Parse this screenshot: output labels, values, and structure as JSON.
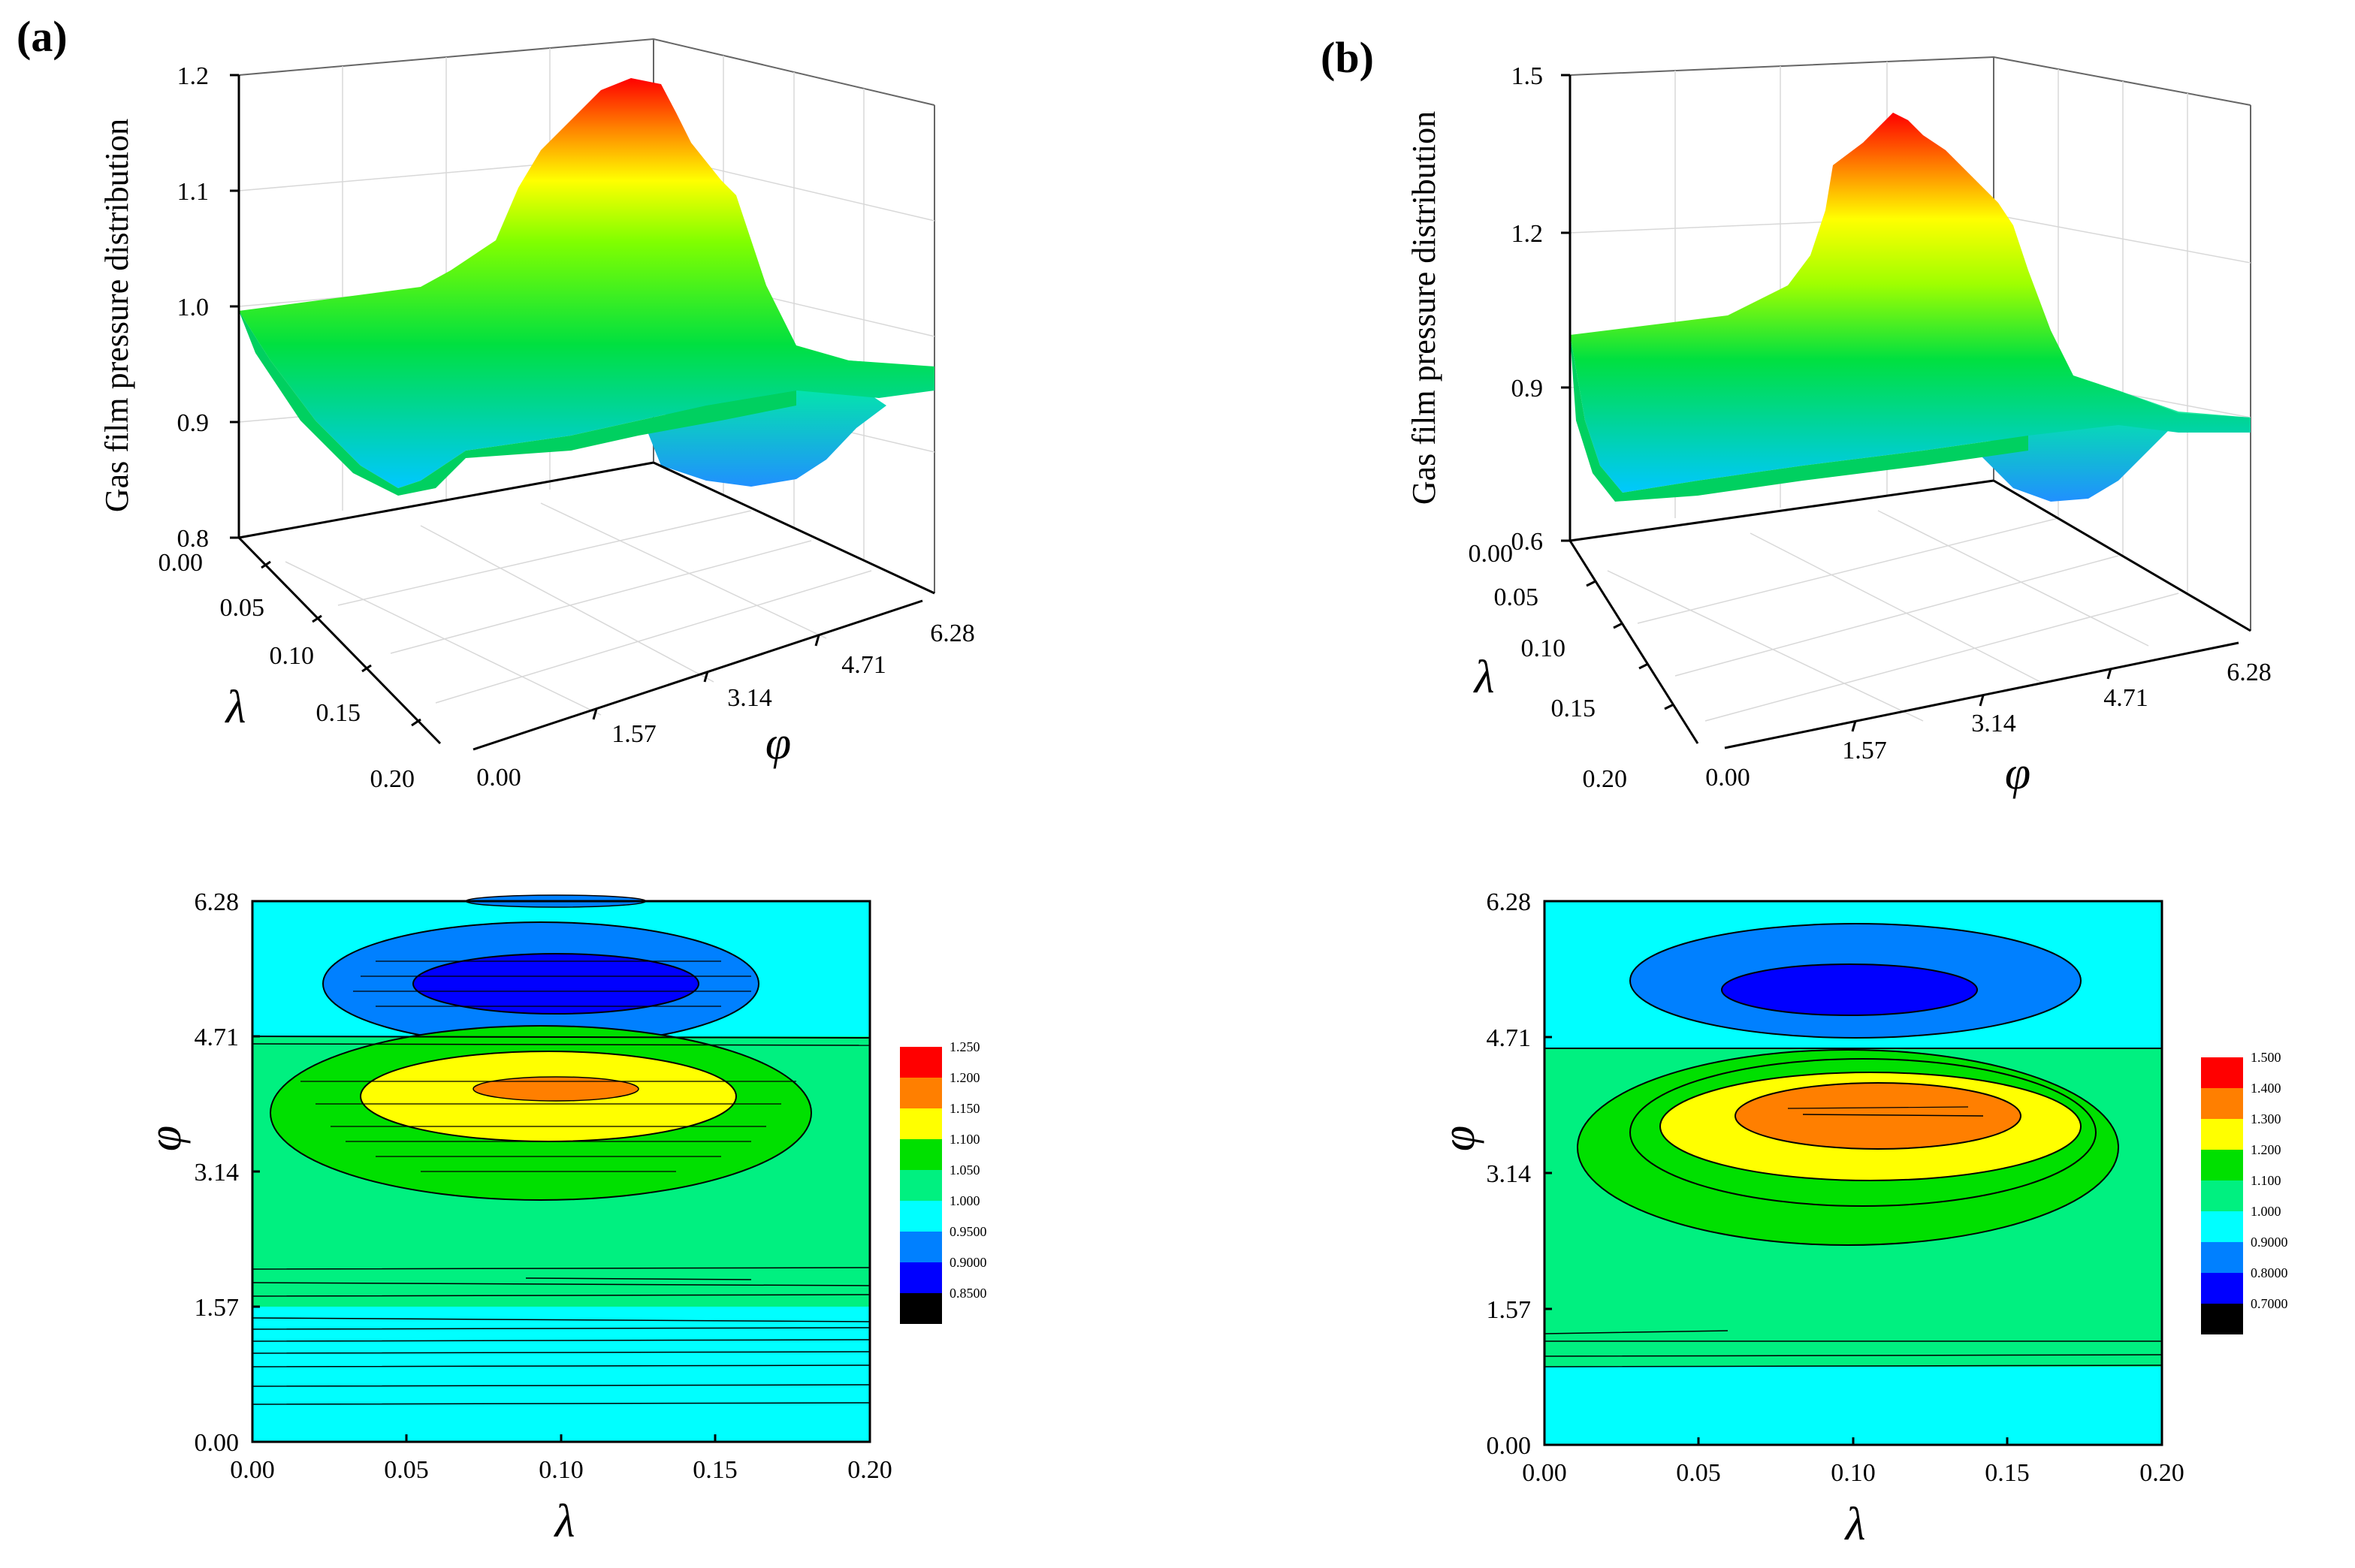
{
  "panels": [
    {
      "letter": "(a)",
      "surface": {
        "z_label": "Gas film pressure distribution",
        "z_ticks": [
          "0.8",
          "0.9",
          "1.0",
          "1.1",
          "1.2"
        ],
        "lambda_ticks": [
          "0.00",
          "0.05",
          "0.10",
          "0.15",
          "0.20"
        ],
        "phi_ticks": [
          "0.00",
          "1.57",
          "3.14",
          "4.71",
          "6.28"
        ],
        "lambda_symbol": "λ",
        "phi_symbol": "φ"
      },
      "contour": {
        "x_ticks": [
          "0.00",
          "0.05",
          "0.10",
          "0.15",
          "0.20"
        ],
        "y_ticks": [
          "0.00",
          "1.57",
          "3.14",
          "4.71",
          "6.28"
        ],
        "x_symbol": "λ",
        "y_symbol": "φ",
        "legend": [
          "1.250",
          "1.200",
          "1.150",
          "1.100",
          "1.050",
          "1.000",
          "0.9500",
          "0.9000",
          "0.8500"
        ]
      }
    },
    {
      "letter": "(b)",
      "surface": {
        "z_label": "Gas film pressure distribution",
        "z_ticks": [
          "0.6",
          "0.9",
          "1.2",
          "1.5"
        ],
        "lambda_ticks": [
          "0.00",
          "0.05",
          "0.10",
          "0.15",
          "0.20"
        ],
        "phi_ticks": [
          "0.00",
          "1.57",
          "3.14",
          "4.71",
          "6.28"
        ],
        "lambda_symbol": "λ",
        "phi_symbol": "φ"
      },
      "contour": {
        "x_ticks": [
          "0.00",
          "0.05",
          "0.10",
          "0.15",
          "0.20"
        ],
        "y_ticks": [
          "0.00",
          "1.57",
          "3.14",
          "4.71",
          "6.28"
        ],
        "x_symbol": "λ",
        "y_symbol": "φ",
        "legend": [
          "1.500",
          "1.400",
          "1.300",
          "1.200",
          "1.100",
          "1.000",
          "0.9000",
          "0.8000",
          "0.7000"
        ]
      }
    }
  ],
  "colors": {
    "legend_a": [
      "#ff0000",
      "#ff7f00",
      "#ffff00",
      "#00e000",
      "#00f080",
      "#00ffff",
      "#0080ff",
      "#0000ff",
      "#000000"
    ],
    "legend_b": [
      "#ff0000",
      "#ff7f00",
      "#ffff00",
      "#00e000",
      "#00f080",
      "#00ffff",
      "#0080ff",
      "#0000ff",
      "#000000"
    ],
    "background_green": "#00f080",
    "background_cyan": "#00ffff"
  },
  "chart_data": [
    {
      "type": "surface3d",
      "panel": "a",
      "title": "",
      "zlabel": "Gas film pressure distribution",
      "xlabel": "φ",
      "ylabel": "λ",
      "xlim": [
        0,
        6.28
      ],
      "ylim": [
        0,
        0.2
      ],
      "zlim": [
        0.8,
        1.2
      ],
      "baseline": 1.0,
      "peak": {
        "phi": 3.9,
        "lambda": 0.1,
        "value": 1.2
      },
      "trough": {
        "phi": 5.4,
        "lambda": 0.1,
        "value": 0.87
      }
    },
    {
      "type": "contour",
      "panel": "a",
      "xlabel": "λ",
      "ylabel": "φ",
      "xlim": [
        0,
        0.2
      ],
      "ylim": [
        0,
        6.28
      ],
      "levels": [
        0.85,
        0.9,
        0.95,
        1.0,
        1.05,
        1.1,
        1.15,
        1.2,
        1.25
      ]
    },
    {
      "type": "surface3d",
      "panel": "b",
      "title": "",
      "zlabel": "Gas film pressure distribution",
      "xlabel": "φ",
      "ylabel": "λ",
      "xlim": [
        0,
        6.28
      ],
      "ylim": [
        0,
        0.2
      ],
      "zlim": [
        0.6,
        1.5
      ],
      "baseline": 1.0,
      "peak": {
        "phi": 3.9,
        "lambda": 0.1,
        "value": 1.42
      },
      "trough": {
        "phi": 5.4,
        "lambda": 0.1,
        "value": 0.75
      }
    },
    {
      "type": "contour",
      "panel": "b",
      "xlabel": "λ",
      "ylabel": "φ",
      "xlim": [
        0,
        0.2
      ],
      "ylim": [
        0,
        6.28
      ],
      "levels": [
        0.7,
        0.8,
        0.9,
        1.0,
        1.1,
        1.2,
        1.3,
        1.4,
        1.5
      ]
    }
  ]
}
